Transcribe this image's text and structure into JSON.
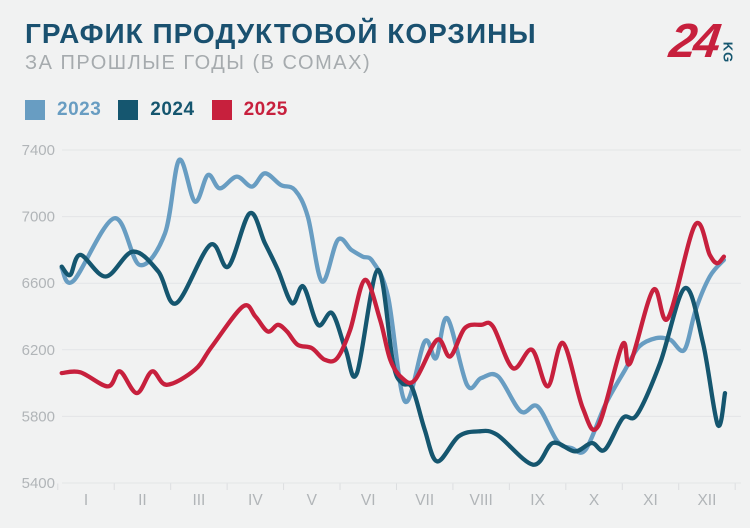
{
  "header": {
    "title": "ГРАФИК ПРОДУКТОВОЙ КОРЗИНЫ",
    "subtitle": "ЗА ПРОШЛЫЕ ГОДЫ (В СОМАХ)",
    "logo_number": "24",
    "logo_suffix": "KG"
  },
  "legend": [
    {
      "label": "2023",
      "color": "#689dc2"
    },
    {
      "label": "2024",
      "color": "#15566f"
    },
    {
      "label": "2025",
      "color": "#c7203d"
    }
  ],
  "colors": {
    "background": "#f1f2f2",
    "title": "#1a5170",
    "subtitle": "#a6abae",
    "gridline": "#e3e5e7",
    "tick": "#dcdee0",
    "axis_text": "#b1b5b8",
    "logo_red": "#c7203d",
    "logo_teal": "#15566f"
  },
  "chart_data": {
    "type": "line",
    "title": "ГРАФИК ПРОДУКТОВОЙ КОРЗИНЫ",
    "subtitle": "ЗА ПРОШЛЫЕ ГОДЫ (В СОМАХ)",
    "unit": "сом",
    "ylim": [
      5400,
      7400
    ],
    "yticks": [
      5400,
      5800,
      6200,
      6600,
      7000,
      7400
    ],
    "xticklabels": [
      "I",
      "II",
      "III",
      "IV",
      "V",
      "VI",
      "VII",
      "VIII",
      "IX",
      "X",
      "XI",
      "XII"
    ],
    "grid": "horizontal",
    "legend_position": "top-left",
    "series": [
      {
        "name": "2023",
        "color": "#689dc2",
        "points": [
          [
            0.57,
            6690
          ],
          [
            0.78,
            6615
          ],
          [
            1.5,
            6990
          ],
          [
            1.95,
            6710
          ],
          [
            2.4,
            6900
          ],
          [
            2.65,
            7340
          ],
          [
            2.93,
            7090
          ],
          [
            3.16,
            7250
          ],
          [
            3.37,
            7170
          ],
          [
            3.67,
            7240
          ],
          [
            3.94,
            7180
          ],
          [
            4.17,
            7260
          ],
          [
            4.45,
            7190
          ],
          [
            4.7,
            7160
          ],
          [
            4.93,
            7000
          ],
          [
            5.18,
            6610
          ],
          [
            5.46,
            6860
          ],
          [
            5.7,
            6800
          ],
          [
            5.9,
            6760
          ],
          [
            6.08,
            6730
          ],
          [
            6.35,
            6520
          ],
          [
            6.65,
            5890
          ],
          [
            7.0,
            6250
          ],
          [
            7.2,
            6150
          ],
          [
            7.4,
            6390
          ],
          [
            7.75,
            5990
          ],
          [
            8.0,
            6030
          ],
          [
            8.3,
            6040
          ],
          [
            8.7,
            5830
          ],
          [
            9.0,
            5860
          ],
          [
            9.35,
            5650
          ],
          [
            9.6,
            5610
          ],
          [
            9.85,
            5600
          ],
          [
            10.2,
            5870
          ],
          [
            10.55,
            6080
          ],
          [
            10.8,
            6220
          ],
          [
            11.1,
            6270
          ],
          [
            11.35,
            6260
          ],
          [
            11.6,
            6200
          ],
          [
            11.8,
            6440
          ],
          [
            12.05,
            6640
          ],
          [
            12.3,
            6740
          ]
        ]
      },
      {
        "name": "2024",
        "color": "#15566f",
        "points": [
          [
            0.57,
            6700
          ],
          [
            0.72,
            6650
          ],
          [
            0.9,
            6770
          ],
          [
            1.35,
            6640
          ],
          [
            1.83,
            6790
          ],
          [
            2.28,
            6670
          ],
          [
            2.6,
            6480
          ],
          [
            3.2,
            6830
          ],
          [
            3.52,
            6700
          ],
          [
            3.9,
            7020
          ],
          [
            4.17,
            6840
          ],
          [
            4.4,
            6680
          ],
          [
            4.65,
            6480
          ],
          [
            4.85,
            6580
          ],
          [
            5.11,
            6350
          ],
          [
            5.36,
            6420
          ],
          [
            5.6,
            6200
          ],
          [
            5.8,
            6060
          ],
          [
            6.17,
            6680
          ],
          [
            6.44,
            6120
          ],
          [
            6.6,
            6000
          ],
          [
            6.78,
            5970
          ],
          [
            7.0,
            5720
          ],
          [
            7.22,
            5530
          ],
          [
            7.6,
            5680
          ],
          [
            7.95,
            5710
          ],
          [
            8.28,
            5690
          ],
          [
            8.92,
            5510
          ],
          [
            9.27,
            5640
          ],
          [
            9.66,
            5590
          ],
          [
            9.96,
            5640
          ],
          [
            10.19,
            5600
          ],
          [
            10.51,
            5790
          ],
          [
            10.76,
            5810
          ],
          [
            11.17,
            6120
          ],
          [
            11.61,
            6570
          ],
          [
            11.93,
            6240
          ],
          [
            12.19,
            5750
          ],
          [
            12.32,
            5940
          ]
        ]
      },
      {
        "name": "2025",
        "color": "#c7203d",
        "points": [
          [
            0.57,
            6060
          ],
          [
            0.9,
            6065
          ],
          [
            1.39,
            5980
          ],
          [
            1.6,
            6070
          ],
          [
            1.9,
            5940
          ],
          [
            2.17,
            6070
          ],
          [
            2.43,
            5990
          ],
          [
            2.93,
            6080
          ],
          [
            3.23,
            6220
          ],
          [
            3.78,
            6460
          ],
          [
            4.0,
            6400
          ],
          [
            4.22,
            6310
          ],
          [
            4.4,
            6350
          ],
          [
            4.56,
            6310
          ],
          [
            4.75,
            6230
          ],
          [
            5.0,
            6210
          ],
          [
            5.23,
            6140
          ],
          [
            5.45,
            6150
          ],
          [
            5.68,
            6320
          ],
          [
            5.94,
            6620
          ],
          [
            6.21,
            6380
          ],
          [
            6.39,
            6140
          ],
          [
            6.6,
            6030
          ],
          [
            6.83,
            6020
          ],
          [
            7.22,
            6260
          ],
          [
            7.45,
            6160
          ],
          [
            7.71,
            6330
          ],
          [
            8.0,
            6350
          ],
          [
            8.21,
            6340
          ],
          [
            8.56,
            6090
          ],
          [
            8.9,
            6200
          ],
          [
            9.18,
            5980
          ],
          [
            9.45,
            6240
          ],
          [
            9.8,
            5850
          ],
          [
            10.07,
            5740
          ],
          [
            10.5,
            6230
          ],
          [
            10.64,
            6120
          ],
          [
            11.05,
            6560
          ],
          [
            11.31,
            6390
          ],
          [
            11.79,
            6950
          ],
          [
            12.05,
            6770
          ],
          [
            12.18,
            6720
          ],
          [
            12.3,
            6760
          ]
        ]
      }
    ]
  }
}
